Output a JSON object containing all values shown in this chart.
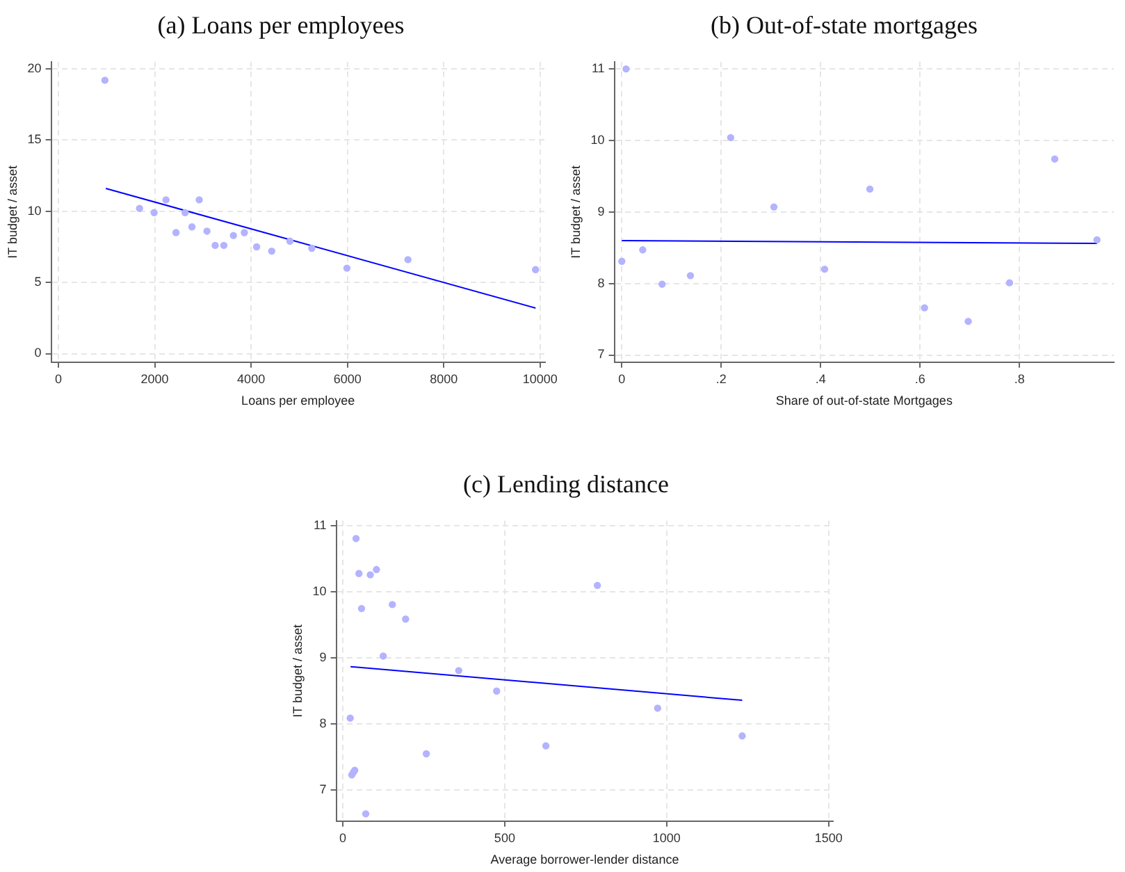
{
  "chart_data": [
    {
      "type": "scatter",
      "title": "(a) Loans per employees",
      "xlabel": "Loans per employee",
      "ylabel": "IT budget / asset",
      "xlim": [
        -150,
        10100
      ],
      "xticks": [
        0,
        2000,
        4000,
        6000,
        8000,
        10000
      ],
      "ylim": [
        -0.6,
        20.5
      ],
      "yticks": [
        0,
        5,
        10,
        15,
        20
      ],
      "grid": true,
      "series": [
        {
          "marker": "circle",
          "color": "#b3b3ff",
          "x": [
            965,
            1684,
            1987,
            2233,
            2441,
            2630,
            2772,
            2923,
            3084,
            3254,
            3434,
            3633,
            3860,
            4115,
            4428,
            4806,
            5260,
            5989,
            7256,
            9905
          ],
          "values": [
            19.2,
            10.2,
            9.9,
            10.8,
            8.5,
            9.9,
            8.9,
            10.8,
            8.6,
            7.6,
            7.6,
            8.3,
            8.5,
            7.5,
            7.2,
            7.9,
            7.4,
            6.0,
            6.6,
            5.9
          ]
        },
        {
          "type": "line",
          "marker": "none",
          "color": "#0000ff",
          "x": [
            984,
            9905
          ],
          "values": [
            11.6,
            3.2
          ]
        }
      ]
    },
    {
      "type": "scatter",
      "title": "(b) Out-of-state mortgages",
      "xlabel": "Share of out-of-state Mortgages",
      "ylabel": "IT budget / asset",
      "xlim": [
        -0.015,
        0.99
      ],
      "xticks": [
        {
          "value": 0,
          "label": "0"
        },
        {
          "value": 0.2,
          "label": ".2"
        },
        {
          "value": 0.4,
          "label": ".4"
        },
        {
          "value": 0.6,
          "label": ".6"
        },
        {
          "value": 0.8,
          "label": ".8"
        }
      ],
      "ylim": [
        6.9,
        11.1
      ],
      "yticks": [
        7,
        8,
        9,
        10,
        11
      ],
      "grid": true,
      "series": [
        {
          "marker": "circle",
          "color": "#b3b3ff",
          "x": [
            0,
            0.0085,
            0.042,
            0.081,
            0.138,
            0.219,
            0.306,
            0.408,
            0.499,
            0.609,
            0.697,
            0.78,
            0.871,
            0.956
          ],
          "values": [
            8.31,
            11.0,
            8.47,
            7.99,
            8.11,
            10.04,
            9.07,
            8.2,
            9.32,
            7.66,
            7.47,
            8.01,
            9.74,
            8.61
          ]
        },
        {
          "type": "line",
          "marker": "none",
          "color": "#0000ff",
          "x": [
            0,
            0.956
          ],
          "values": [
            8.6,
            8.56
          ]
        }
      ]
    },
    {
      "type": "scatter",
      "title": "(c) Lending distance",
      "xlabel": "Average borrower-lender distance",
      "ylabel": "IT budget / asset",
      "xlim": [
        -20,
        1514
      ],
      "xticks": [
        0,
        500,
        1000,
        1500
      ],
      "ylim": [
        6.53,
        11.08
      ],
      "yticks": [
        7,
        8,
        9,
        10,
        11
      ],
      "grid": true,
      "series": [
        {
          "marker": "circle",
          "color": "#b3b3ff",
          "x": [
            41,
            50,
            58,
            85,
            104,
            125,
            153,
            194,
            23,
            28,
            33,
            37,
            71,
            258,
            358,
            475,
            627,
            786,
            972,
            1233
          ],
          "values": [
            10.81,
            10.28,
            9.75,
            10.26,
            10.34,
            9.03,
            9.81,
            9.59,
            8.09,
            7.23,
            7.27,
            7.3,
            6.64,
            7.55,
            8.81,
            8.5,
            7.67,
            10.1,
            8.24,
            7.82
          ]
        },
        {
          "type": "line",
          "marker": "none",
          "color": "#0000ff",
          "x": [
            24,
            1233
          ],
          "values": [
            8.87,
            8.36
          ]
        }
      ]
    }
  ]
}
